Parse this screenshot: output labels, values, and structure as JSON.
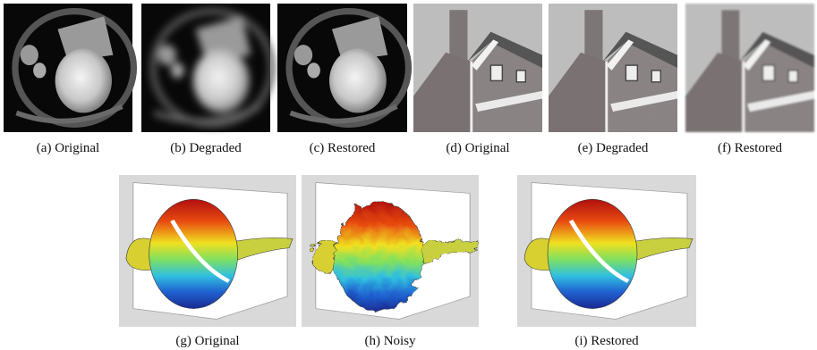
{
  "subfigures": [
    {
      "caption": "(a) Original"
    },
    {
      "caption": "(b) Degraded"
    },
    {
      "caption": "(c) Restored"
    },
    {
      "caption": "(d) Original"
    },
    {
      "caption": "(e) Degraded"
    },
    {
      "caption": "(f) Restored"
    },
    {
      "caption": "(g) Original"
    },
    {
      "caption": "(h) Noisy"
    },
    {
      "caption": "(i) Restored"
    }
  ]
}
